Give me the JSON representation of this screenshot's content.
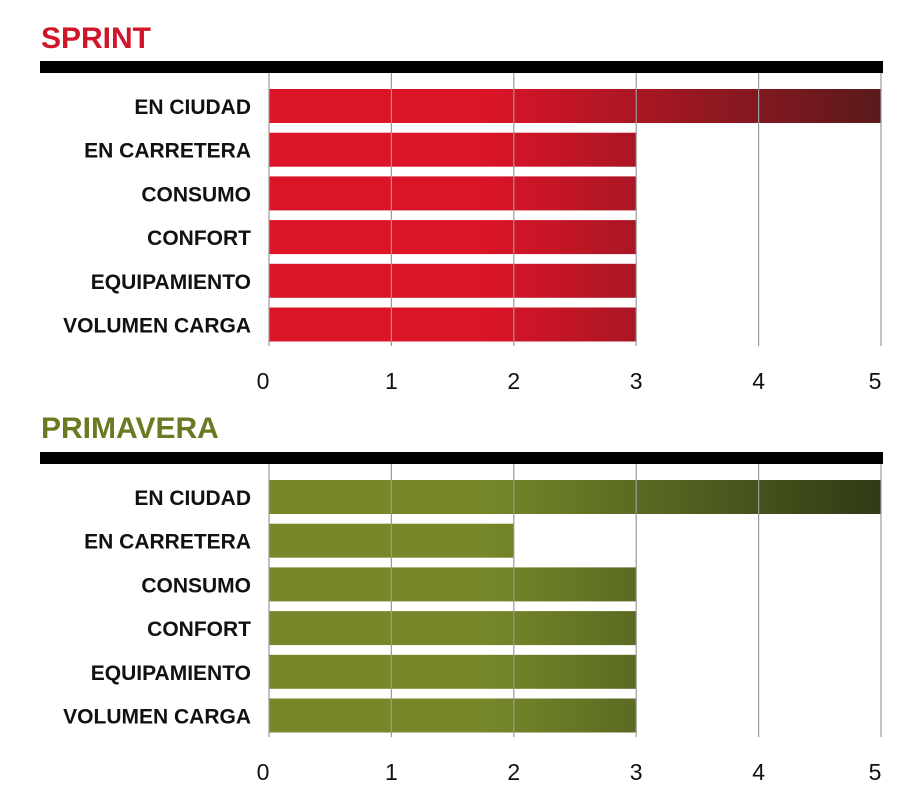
{
  "chart_data": [
    {
      "type": "bar",
      "orientation": "horizontal",
      "title": "SPRINT",
      "title_color": "#d0152a",
      "bar_color_start": "#dc1428",
      "bar_color_end": "#5a1a1c",
      "categories": [
        "EN CIUDAD",
        "EN CARRETERA",
        "CONSUMO",
        "CONFORT",
        "EQUIPAMIENTO",
        "VOLUMEN CARGA"
      ],
      "values": [
        5,
        3,
        3,
        3,
        3,
        3
      ],
      "xlim": [
        0,
        5
      ],
      "xticks": [
        "0",
        "1",
        "2",
        "3",
        "4",
        "5"
      ],
      "grid": true,
      "xlabel": "",
      "ylabel": ""
    },
    {
      "type": "bar",
      "orientation": "horizontal",
      "title": "PRIMAVERA",
      "title_color": "#6b7a22",
      "bar_color_start": "#76882a",
      "bar_color_end": "#2e3b16",
      "categories": [
        "EN CIUDAD",
        "EN CARRETERA",
        "CONSUMO",
        "CONFORT",
        "EQUIPAMIENTO",
        "VOLUMEN CARGA"
      ],
      "values": [
        5,
        2,
        3,
        3,
        3,
        3
      ],
      "xlim": [
        0,
        5
      ],
      "xticks": [
        "0",
        "1",
        "2",
        "3",
        "4",
        "5"
      ],
      "grid": true,
      "xlabel": "",
      "ylabel": ""
    }
  ]
}
